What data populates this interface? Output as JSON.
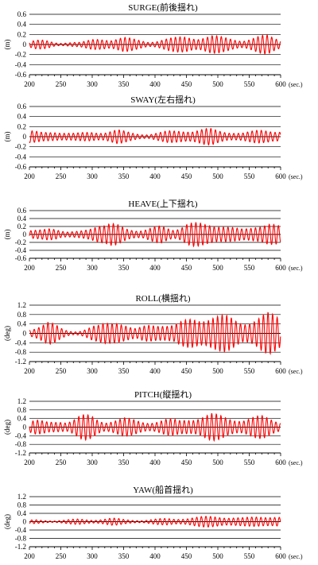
{
  "colors": {
    "series": "#ff0000",
    "grid": "#000000",
    "background": "#ffffff"
  },
  "x_unit": "(sec.)",
  "chart_data": [
    {
      "type": "line",
      "title": "SURGE(前後揺れ)",
      "ylabel": "(m)",
      "xlabel": "(sec.)",
      "xlim": [
        200,
        600
      ],
      "ylim": [
        -0.6,
        0.6
      ],
      "x_ticks": [
        200,
        250,
        300,
        350,
        400,
        450,
        500,
        550,
        600
      ],
      "y_ticks": [
        -0.6,
        -0.4,
        -0.2,
        0,
        0.2,
        0.4,
        0.6
      ],
      "y_tick_labels": [
        "-0.6",
        "-0.4",
        "-0.2",
        "0",
        "0.2",
        "0.4",
        "0.6"
      ],
      "grid": true,
      "series": [
        {
          "x": [
            200,
            210,
            220,
            230,
            240,
            250,
            260,
            270,
            280,
            290,
            300,
            310,
            320,
            330,
            340,
            350,
            360,
            370,
            380,
            390,
            400,
            410,
            420,
            430,
            440,
            450,
            460,
            470,
            480,
            490,
            500,
            510,
            520,
            530,
            540,
            550,
            560,
            570,
            580,
            590,
            600
          ],
          "values": [
            0.08,
            0.1,
            0.09,
            0.07,
            0.04,
            0.03,
            0.05,
            0.06,
            0.05,
            0.07,
            0.1,
            0.12,
            0.13,
            0.12,
            0.15,
            0.16,
            0.13,
            0.1,
            0.08,
            0.06,
            0.08,
            0.11,
            0.13,
            0.14,
            0.16,
            0.18,
            0.17,
            0.16,
            0.18,
            0.19,
            0.17,
            0.15,
            0.14,
            0.12,
            0.1,
            0.12,
            0.15,
            0.18,
            0.2,
            0.16,
            0.12
          ]
        }
      ]
    },
    {
      "type": "line",
      "title": "SWAY(左右揺れ)",
      "ylabel": "(m)",
      "xlabel": "(sec.)",
      "xlim": [
        200,
        600
      ],
      "ylim": [
        -0.6,
        0.6
      ],
      "x_ticks": [
        200,
        250,
        300,
        350,
        400,
        450,
        500,
        550,
        600
      ],
      "y_ticks": [
        -0.6,
        -0.4,
        -0.2,
        0,
        0.2,
        0.4,
        0.6
      ],
      "y_tick_labels": [
        "-0.6",
        "-0.4",
        "-0.2",
        "0",
        "0.2",
        "0.4",
        "0.6"
      ],
      "grid": true,
      "series": [
        {
          "x": [
            200,
            210,
            220,
            230,
            240,
            250,
            260,
            270,
            280,
            290,
            300,
            310,
            320,
            330,
            340,
            350,
            360,
            370,
            380,
            390,
            400,
            410,
            420,
            430,
            440,
            450,
            460,
            470,
            480,
            490,
            500,
            510,
            520,
            530,
            540,
            550,
            560,
            570,
            580,
            590,
            600
          ],
          "values": [
            0.12,
            0.11,
            0.1,
            0.12,
            0.13,
            0.1,
            0.08,
            0.07,
            0.08,
            0.1,
            0.12,
            0.11,
            0.1,
            0.12,
            0.14,
            0.12,
            0.1,
            0.08,
            0.06,
            0.05,
            0.07,
            0.09,
            0.12,
            0.14,
            0.16,
            0.15,
            0.13,
            0.14,
            0.16,
            0.17,
            0.15,
            0.13,
            0.11,
            0.09,
            0.08,
            0.1,
            0.13,
            0.16,
            0.17,
            0.14,
            0.12
          ]
        }
      ]
    },
    {
      "type": "line",
      "title": "HEAVE(上下揺れ)",
      "ylabel": "(m)",
      "xlabel": "(sec.)",
      "xlim": [
        200,
        600
      ],
      "ylim": [
        -0.6,
        0.6
      ],
      "x_ticks": [
        200,
        250,
        300,
        350,
        400,
        450,
        500,
        550,
        600
      ],
      "y_ticks": [
        -0.6,
        -0.4,
        -0.2,
        0,
        0.2,
        0.4,
        0.6
      ],
      "y_tick_labels": [
        "-0.6",
        "-0.4",
        "-0.2",
        "0",
        "0.2",
        "0.4",
        "0.6"
      ],
      "grid": true,
      "series": [
        {
          "x": [
            200,
            210,
            220,
            230,
            240,
            250,
            260,
            270,
            280,
            290,
            300,
            310,
            320,
            330,
            340,
            350,
            360,
            370,
            380,
            390,
            400,
            410,
            420,
            430,
            440,
            450,
            460,
            470,
            480,
            490,
            500,
            510,
            520,
            530,
            540,
            550,
            560,
            570,
            580,
            590,
            600
          ],
          "values": [
            0.1,
            0.15,
            0.2,
            0.22,
            0.15,
            0.08,
            0.06,
            0.08,
            0.12,
            0.18,
            0.22,
            0.24,
            0.22,
            0.28,
            0.3,
            0.25,
            0.18,
            0.12,
            0.1,
            0.14,
            0.2,
            0.26,
            0.22,
            0.16,
            0.2,
            0.28,
            0.3,
            0.3,
            0.3,
            0.32,
            0.3,
            0.26,
            0.2,
            0.16,
            0.14,
            0.18,
            0.26,
            0.32,
            0.35,
            0.28,
            0.2
          ]
        }
      ]
    },
    {
      "type": "line",
      "title": "ROLL(横揺れ)",
      "ylabel": "(deg)",
      "xlabel": "(sec.)",
      "xlim": [
        200,
        600
      ],
      "ylim": [
        -1.2,
        1.2
      ],
      "x_ticks": [
        200,
        250,
        300,
        350,
        400,
        450,
        500,
        550,
        600
      ],
      "y_ticks": [
        -1.2,
        -0.8,
        -0.4,
        0,
        0.4,
        0.8,
        1.2
      ],
      "y_tick_labels": [
        "-1.2",
        "-0.8",
        "-0.4",
        "0",
        "0.4",
        "0.8",
        "1.2"
      ],
      "grid": true,
      "series": [
        {
          "x": [
            200,
            210,
            220,
            230,
            240,
            250,
            260,
            270,
            280,
            290,
            300,
            310,
            320,
            330,
            340,
            350,
            360,
            370,
            380,
            390,
            400,
            410,
            420,
            430,
            440,
            450,
            460,
            470,
            480,
            490,
            500,
            510,
            520,
            530,
            540,
            550,
            560,
            570,
            580,
            590,
            600
          ],
          "values": [
            0.2,
            0.3,
            0.4,
            0.5,
            0.4,
            0.25,
            0.15,
            0.1,
            0.12,
            0.2,
            0.3,
            0.35,
            0.5,
            0.6,
            0.7,
            0.5,
            0.3,
            0.2,
            0.3,
            0.4,
            0.45,
            0.5,
            0.45,
            0.4,
            0.5,
            0.6,
            0.7,
            0.75,
            0.85,
            0.9,
            0.85,
            0.8,
            0.7,
            0.6,
            0.55,
            0.65,
            0.75,
            0.85,
            0.9,
            0.8,
            0.7
          ]
        }
      ]
    },
    {
      "type": "line",
      "title": "PITCH(縦揺れ)",
      "ylabel": "(deg)",
      "xlabel": "(sec.)",
      "xlim": [
        200,
        600
      ],
      "ylim": [
        -1.2,
        1.2
      ],
      "x_ticks": [
        200,
        250,
        300,
        350,
        400,
        450,
        500,
        550,
        600
      ],
      "y_ticks": [
        -1.2,
        -0.8,
        -0.4,
        0,
        0.4,
        0.8,
        1.2
      ],
      "y_tick_labels": [
        "-1.2",
        "-0.8",
        "-0.4",
        "0",
        "0.4",
        "0.8",
        "1.2"
      ],
      "grid": true,
      "series": [
        {
          "x": [
            200,
            210,
            220,
            230,
            240,
            250,
            260,
            270,
            280,
            290,
            300,
            310,
            320,
            330,
            340,
            350,
            360,
            370,
            380,
            390,
            400,
            410,
            420,
            430,
            440,
            450,
            460,
            470,
            480,
            490,
            500,
            510,
            520,
            530,
            540,
            550,
            560,
            570,
            580,
            590,
            600
          ],
          "values": [
            0.3,
            0.35,
            0.3,
            0.25,
            0.3,
            0.35,
            0.3,
            0.4,
            0.55,
            0.6,
            0.55,
            0.4,
            0.3,
            0.35,
            0.4,
            0.45,
            0.4,
            0.35,
            0.3,
            0.28,
            0.3,
            0.35,
            0.4,
            0.38,
            0.35,
            0.45,
            0.5,
            0.55,
            0.6,
            0.65,
            0.6,
            0.55,
            0.5,
            0.45,
            0.4,
            0.45,
            0.5,
            0.55,
            0.5,
            0.4,
            0.3
          ]
        }
      ]
    },
    {
      "type": "line",
      "title": "YAW(船首揺れ)",
      "ylabel": "(deg)",
      "xlabel": "(sec.)",
      "xlim": [
        200,
        600
      ],
      "ylim": [
        -1.2,
        1.2
      ],
      "x_ticks": [
        200,
        250,
        300,
        350,
        400,
        450,
        500,
        550,
        600
      ],
      "y_ticks": [
        -1.2,
        -0.8,
        -0.4,
        0,
        0.4,
        0.8,
        1.2
      ],
      "y_tick_labels": [
        "-1.2",
        "-0.8",
        "-0.4",
        "0",
        "0.4",
        "0.8",
        "1.2"
      ],
      "grid": true,
      "series": [
        {
          "x": [
            200,
            210,
            220,
            230,
            240,
            250,
            260,
            270,
            280,
            290,
            300,
            310,
            320,
            330,
            340,
            350,
            360,
            370,
            380,
            390,
            400,
            410,
            420,
            430,
            440,
            450,
            460,
            470,
            480,
            490,
            500,
            510,
            520,
            530,
            540,
            550,
            560,
            570,
            580,
            590,
            600
          ],
          "values": [
            0.08,
            0.1,
            0.08,
            0.06,
            0.05,
            0.07,
            0.1,
            0.12,
            0.14,
            0.12,
            0.1,
            0.12,
            0.15,
            0.18,
            0.16,
            0.12,
            0.1,
            0.08,
            0.07,
            0.1,
            0.13,
            0.15,
            0.17,
            0.16,
            0.18,
            0.2,
            0.22,
            0.24,
            0.26,
            0.28,
            0.3,
            0.28,
            0.25,
            0.22,
            0.2,
            0.22,
            0.26,
            0.3,
            0.32,
            0.3,
            0.25
          ]
        }
      ]
    }
  ]
}
